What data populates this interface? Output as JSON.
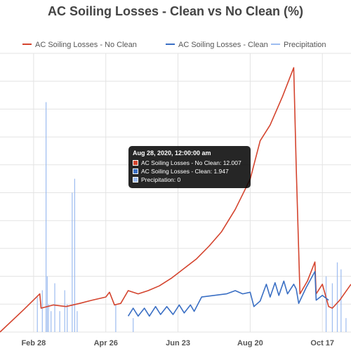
{
  "title": "AC Soiling Losses - Clean vs No Clean (%)",
  "legend": {
    "placement": "top",
    "items": [
      {
        "label": "AC Soiling Losses - No Clean",
        "color": "#d4442e",
        "style": "line"
      },
      {
        "label": "AC Soiling Losses - Clean",
        "color": "#3a6fc4",
        "style": "line"
      },
      {
        "label": "Precipitation",
        "color": "#9dbcf0",
        "style": "line"
      }
    ]
  },
  "tooltip": {
    "title": "Aug 28, 2020, 12:00:00 am",
    "rows": [
      {
        "text": "AC Soiling Losses - No Clean: 12.007",
        "color": "#d4442e"
      },
      {
        "text": "AC Soiling Losses - Clean: 1.947",
        "color": "#3a6fc4"
      },
      {
        "text": "Precipitation: 0",
        "color": "#9dbcf0"
      }
    ]
  },
  "chart_data": {
    "type": "line",
    "title": "AC Soiling Losses - Clean vs No Clean (%)",
    "grid": true,
    "x_axis": {
      "type": "date",
      "range": [
        "2020-02-01",
        "2020-11-09"
      ],
      "ticks": [
        {
          "date": "2020-02-28",
          "label": "Feb 28"
        },
        {
          "date": "2020-04-26",
          "label": "Apr 26"
        },
        {
          "date": "2020-06-23",
          "label": "Jun 23"
        },
        {
          "date": "2020-08-20",
          "label": "Aug 20"
        },
        {
          "date": "2020-10-17",
          "label": "Oct 17"
        }
      ]
    },
    "y_range": [
      0,
      17.5
    ],
    "precipitation_range": [
      0,
      4
    ],
    "series": [
      {
        "name": "AC Soiling Losses - No Clean",
        "color": "#d4442e",
        "points": [
          [
            "2020-02-01",
            0.0
          ],
          [
            "2020-02-20",
            1.4
          ],
          [
            "2020-03-04",
            2.4
          ],
          [
            "2020-03-05",
            1.5
          ],
          [
            "2020-03-15",
            1.7
          ],
          [
            "2020-03-25",
            1.6
          ],
          [
            "2020-04-05",
            1.8
          ],
          [
            "2020-04-15",
            2.0
          ],
          [
            "2020-04-26",
            2.2
          ],
          [
            "2020-04-29",
            2.5
          ],
          [
            "2020-05-03",
            1.7
          ],
          [
            "2020-05-08",
            1.8
          ],
          [
            "2020-05-14",
            2.6
          ],
          [
            "2020-05-22",
            2.4
          ],
          [
            "2020-05-30",
            2.6
          ],
          [
            "2020-06-08",
            2.9
          ],
          [
            "2020-06-18",
            3.4
          ],
          [
            "2020-06-28",
            4.0
          ],
          [
            "2020-07-08",
            4.6
          ],
          [
            "2020-07-18",
            5.4
          ],
          [
            "2020-07-28",
            6.3
          ],
          [
            "2020-08-08",
            7.7
          ],
          [
            "2020-08-20",
            9.6
          ],
          [
            "2020-08-28",
            12.007
          ],
          [
            "2020-09-05",
            13.0
          ],
          [
            "2020-09-15",
            14.8
          ],
          [
            "2020-09-24",
            16.6
          ],
          [
            "2020-09-26",
            10.3
          ],
          [
            "2020-09-29",
            2.4
          ],
          [
            "2020-10-05",
            3.2
          ],
          [
            "2020-10-11",
            4.4
          ],
          [
            "2020-10-12",
            2.4
          ],
          [
            "2020-10-17",
            3.0
          ],
          [
            "2020-10-22",
            1.6
          ],
          [
            "2020-10-25",
            1.5
          ],
          [
            "2020-10-31",
            2.0
          ],
          [
            "2020-11-09",
            3.0
          ]
        ]
      },
      {
        "name": "AC Soiling Losses - Clean",
        "color": "#3a6fc4",
        "points": [
          [
            "2020-05-14",
            1.0
          ],
          [
            "2020-05-18",
            1.5
          ],
          [
            "2020-05-22",
            1.0
          ],
          [
            "2020-05-27",
            1.5
          ],
          [
            "2020-05-31",
            1.0
          ],
          [
            "2020-06-05",
            1.6
          ],
          [
            "2020-06-09",
            1.1
          ],
          [
            "2020-06-14",
            1.6
          ],
          [
            "2020-06-19",
            1.1
          ],
          [
            "2020-06-24",
            1.7
          ],
          [
            "2020-06-28",
            1.2
          ],
          [
            "2020-07-03",
            1.7
          ],
          [
            "2020-07-06",
            1.3
          ],
          [
            "2020-07-12",
            2.2
          ],
          [
            "2020-07-22",
            2.3
          ],
          [
            "2020-08-01",
            2.4
          ],
          [
            "2020-08-08",
            2.6
          ],
          [
            "2020-08-14",
            2.4
          ],
          [
            "2020-08-20",
            2.5
          ],
          [
            "2020-08-23",
            1.6
          ],
          [
            "2020-08-28",
            1.947
          ],
          [
            "2020-09-02",
            3.0
          ],
          [
            "2020-09-05",
            2.2
          ],
          [
            "2020-09-09",
            3.1
          ],
          [
            "2020-09-12",
            2.3
          ],
          [
            "2020-09-16",
            3.2
          ],
          [
            "2020-09-19",
            2.4
          ],
          [
            "2020-09-24",
            3.0
          ],
          [
            "2020-09-26",
            2.7
          ],
          [
            "2020-09-28",
            1.8
          ],
          [
            "2020-10-04",
            2.8
          ],
          [
            "2020-10-11",
            3.8
          ],
          [
            "2020-10-12",
            2.0
          ],
          [
            "2020-10-17",
            2.3
          ],
          [
            "2020-10-22",
            2.0
          ]
        ]
      },
      {
        "name": "Precipitation",
        "color": "#9dbcf0",
        "points": [
          [
            "2020-03-02",
            0.5
          ],
          [
            "2020-03-06",
            0.6
          ],
          [
            "2020-03-09",
            3.3
          ],
          [
            "2020-03-10",
            0.8
          ],
          [
            "2020-03-11",
            0.4
          ],
          [
            "2020-03-13",
            0.3
          ],
          [
            "2020-03-16",
            0.7
          ],
          [
            "2020-03-20",
            0.3
          ],
          [
            "2020-03-24",
            0.6
          ],
          [
            "2020-03-26",
            0.4
          ],
          [
            "2020-03-30",
            2.0
          ],
          [
            "2020-04-01",
            2.2
          ],
          [
            "2020-04-03",
            0.3
          ],
          [
            "2020-05-04",
            0.4
          ],
          [
            "2020-05-18",
            0.2
          ],
          [
            "2020-10-20",
            0.8
          ],
          [
            "2020-10-25",
            0.7
          ],
          [
            "2020-10-29",
            1.0
          ],
          [
            "2020-11-01",
            0.9
          ],
          [
            "2020-11-05",
            0.2
          ]
        ]
      }
    ]
  }
}
